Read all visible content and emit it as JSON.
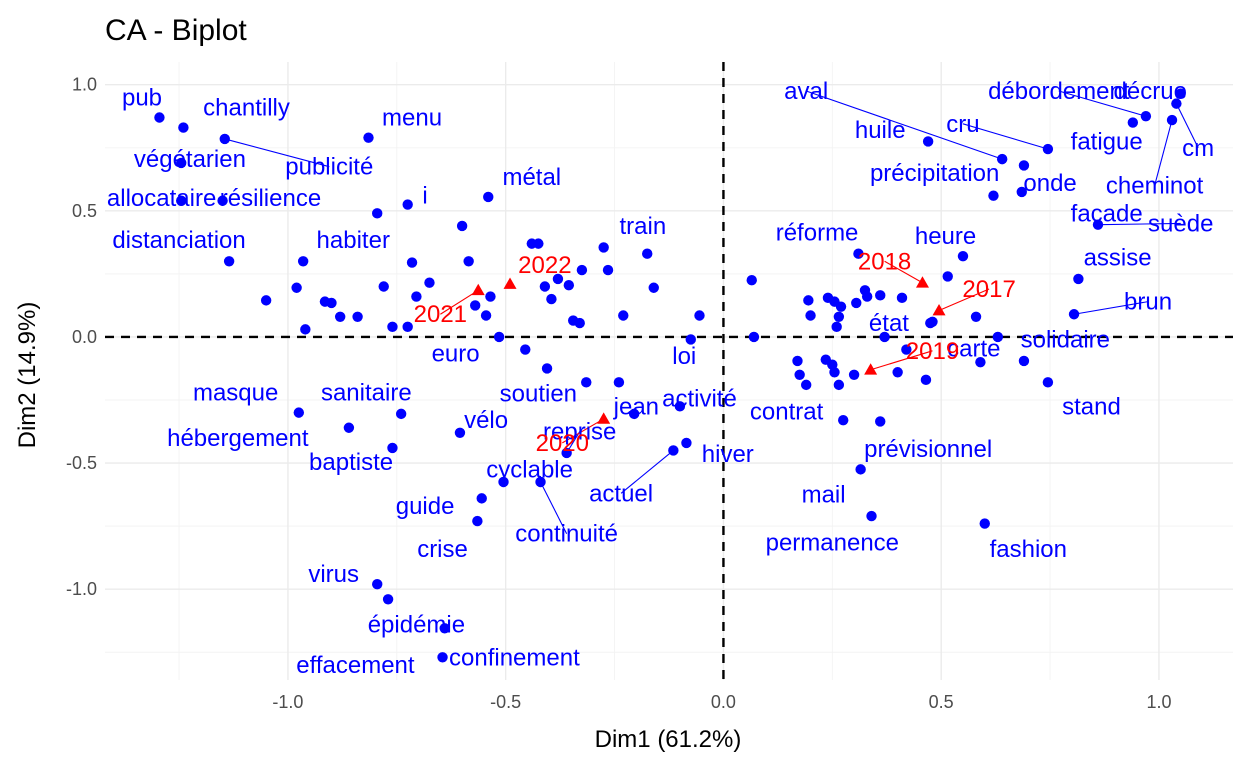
{
  "chart_data": {
    "type": "scatter",
    "title": "CA - Biplot",
    "xlabel": "Dim1 (61.2%)",
    "ylabel": "Dim2 (14.9%)",
    "xlim": [
      -1.42,
      1.17
    ],
    "ylim": [
      -1.36,
      1.09
    ],
    "x_ticks": [
      -1.0,
      -0.5,
      0.0,
      0.5,
      1.0
    ],
    "x_tick_labels": [
      "-1.0",
      "-0.5",
      "0.0",
      "0.5",
      "1.0"
    ],
    "y_ticks": [
      -1.0,
      -0.5,
      0.0,
      0.5,
      1.0
    ],
    "y_tick_labels": [
      "-1.0",
      "-0.5",
      "0.0",
      "0.5",
      "1.0"
    ],
    "grid": true,
    "reference_lines": {
      "x": 0,
      "y": 0,
      "style": "dashed"
    },
    "colors": {
      "rows": "#0000ff",
      "columns": "#ff0000"
    },
    "column_points": [
      {
        "label": "2017",
        "x": 0.495,
        "y": 0.105,
        "lx": 0.61,
        "ly": 0.19
      },
      {
        "label": "2018",
        "x": 0.457,
        "y": 0.215,
        "lx": 0.37,
        "ly": 0.3
      },
      {
        "label": "2019",
        "x": 0.338,
        "y": -0.13,
        "lx": 0.48,
        "ly": -0.055
      },
      {
        "label": "2020",
        "x": -0.275,
        "y": -0.325,
        "lx": -0.37,
        "ly": -0.42
      },
      {
        "label": "2021",
        "x": -0.563,
        "y": 0.185,
        "lx": -0.65,
        "ly": 0.09
      },
      {
        "label": "2022",
        "x": -0.49,
        "y": 0.21,
        "lx": -0.41,
        "ly": 0.285
      }
    ],
    "row_points": [
      {
        "label": "pub",
        "x": -1.295,
        "y": 0.87,
        "lx": -1.335,
        "ly": 0.95
      },
      {
        "label": "chantilly",
        "x": -1.24,
        "y": 0.83,
        "lx": -1.095,
        "ly": 0.91
      },
      {
        "label": "végétarien",
        "x": -1.245,
        "y": 0.69,
        "lx": -1.225,
        "ly": 0.705
      },
      {
        "label": "publicité",
        "x": -1.145,
        "y": 0.785,
        "lx": -0.905,
        "ly": 0.675,
        "leader": true
      },
      {
        "label": "menu",
        "x": -0.815,
        "y": 0.79,
        "lx": -0.715,
        "ly": 0.87
      },
      {
        "label": "allocataire",
        "x": -1.245,
        "y": 0.54,
        "lx": -1.29,
        "ly": 0.55
      },
      {
        "label": "résilience",
        "x": -1.15,
        "y": 0.54,
        "lx": -1.04,
        "ly": 0.55
      },
      {
        "label": "i",
        "x": -0.725,
        "y": 0.525,
        "lx": -0.685,
        "ly": 0.56
      },
      {
        "label": "métal",
        "x": -0.54,
        "y": 0.555,
        "lx": -0.44,
        "ly": 0.635
      },
      {
        "label": "habiter",
        "x": -0.795,
        "y": 0.49,
        "lx": -0.85,
        "ly": 0.385
      },
      {
        "label": "distanciation",
        "x": -1.135,
        "y": 0.3,
        "lx": -1.25,
        "ly": 0.385
      },
      {
        "label": "train",
        "x": -0.175,
        "y": 0.33,
        "lx": -0.185,
        "ly": 0.44
      },
      {
        "label": "réforme",
        "x": 0.31,
        "y": 0.33,
        "lx": 0.215,
        "ly": 0.415
      },
      {
        "label": "heure",
        "x": 0.55,
        "y": 0.32,
        "lx": 0.51,
        "ly": 0.4
      },
      {
        "label": "assise",
        "x": 0.815,
        "y": 0.23,
        "lx": 0.905,
        "ly": 0.315
      },
      {
        "label": "brun",
        "x": 0.805,
        "y": 0.09,
        "lx": 0.975,
        "ly": 0.14,
        "leader": true
      },
      {
        "label": "état",
        "x": 0.475,
        "y": 0.055,
        "lx": 0.38,
        "ly": 0.055
      },
      {
        "label": "carte",
        "x": 0.59,
        "y": -0.1,
        "lx": 0.575,
        "ly": -0.045
      },
      {
        "label": "solidaire",
        "x": 0.69,
        "y": -0.095,
        "lx": 0.785,
        "ly": -0.01
      },
      {
        "label": "stand",
        "x": 0.745,
        "y": -0.18,
        "lx": 0.845,
        "ly": -0.275
      },
      {
        "label": "euro",
        "x": -0.405,
        "y": -0.125,
        "lx": -0.615,
        "ly": -0.065
      },
      {
        "label": "loi",
        "x": -0.075,
        "y": -0.01,
        "lx": -0.09,
        "ly": -0.075
      },
      {
        "label": "soutien",
        "x": -0.315,
        "y": -0.18,
        "lx": -0.425,
        "ly": -0.225
      },
      {
        "label": "activité",
        "x": -0.1,
        "y": -0.275,
        "lx": -0.055,
        "ly": -0.245
      },
      {
        "label": "jean",
        "x": -0.205,
        "y": -0.305,
        "lx": -0.2,
        "ly": -0.275
      },
      {
        "label": "masque",
        "x": -0.975,
        "y": -0.3,
        "lx": -1.12,
        "ly": -0.22
      },
      {
        "label": "sanitaire",
        "x": -0.74,
        "y": -0.305,
        "lx": -0.82,
        "ly": -0.22
      },
      {
        "label": "vélo",
        "x": -0.605,
        "y": -0.38,
        "lx": -0.545,
        "ly": -0.33
      },
      {
        "label": "reprise",
        "x": -0.36,
        "y": -0.46,
        "lx": -0.33,
        "ly": -0.375,
        "leader": true
      },
      {
        "label": "hébergement",
        "x": -0.86,
        "y": -0.36,
        "lx": -1.115,
        "ly": -0.4
      },
      {
        "label": "baptiste",
        "x": -0.76,
        "y": -0.44,
        "lx": -0.855,
        "ly": -0.495
      },
      {
        "label": "cyclable",
        "x": -0.505,
        "y": -0.575,
        "lx": -0.445,
        "ly": -0.525
      },
      {
        "label": "actuel",
        "x": -0.115,
        "y": -0.45,
        "lx": -0.235,
        "ly": -0.62,
        "leader": true
      },
      {
        "label": "hiver",
        "x": -0.085,
        "y": -0.42,
        "lx": 0.01,
        "ly": -0.465
      },
      {
        "label": "contrat",
        "x": 0.275,
        "y": -0.33,
        "lx": 0.145,
        "ly": -0.295
      },
      {
        "label": "prévisionnel",
        "x": 0.36,
        "y": -0.335,
        "lx": 0.47,
        "ly": -0.445
      },
      {
        "label": "guide",
        "x": -0.555,
        "y": -0.64,
        "lx": -0.685,
        "ly": -0.67
      },
      {
        "label": "continuité",
        "x": -0.42,
        "y": -0.575,
        "lx": -0.36,
        "ly": -0.78,
        "leader": true
      },
      {
        "label": "crise",
        "x": -0.565,
        "y": -0.73,
        "lx": -0.645,
        "ly": -0.84
      },
      {
        "label": "mail",
        "x": 0.315,
        "y": -0.525,
        "lx": 0.23,
        "ly": -0.625
      },
      {
        "label": "permanence",
        "x": 0.34,
        "y": -0.71,
        "lx": 0.25,
        "ly": -0.815
      },
      {
        "label": "fashion",
        "x": 0.6,
        "y": -0.74,
        "lx": 0.7,
        "ly": -0.84
      },
      {
        "label": "virus",
        "x": -0.795,
        "y": -0.98,
        "lx": -0.895,
        "ly": -0.94
      },
      {
        "label": "épidémie",
        "x": -0.77,
        "y": -1.04,
        "lx": -0.705,
        "ly": -1.14
      },
      {
        "label": "confinement",
        "x": -0.64,
        "y": -1.155,
        "lx": -0.48,
        "ly": -1.27
      },
      {
        "label": "effacement",
        "x": -0.645,
        "y": -1.27,
        "lx": -0.845,
        "ly": -1.3
      },
      {
        "label": "aval",
        "x": 0.64,
        "y": 0.705,
        "lx": 0.19,
        "ly": 0.975,
        "leader": true
      },
      {
        "label": "débordement",
        "x": 0.97,
        "y": 0.875,
        "lx": 0.77,
        "ly": 0.975,
        "leader": true
      },
      {
        "label": "décrue",
        "x": 1.05,
        "y": 0.965,
        "lx": 0.98,
        "ly": 0.975
      },
      {
        "label": "huile",
        "x": 0.47,
        "y": 0.775,
        "lx": 0.36,
        "ly": 0.82
      },
      {
        "label": "cru",
        "x": 0.745,
        "y": 0.745,
        "lx": 0.55,
        "ly": 0.845,
        "leader": true
      },
      {
        "label": "fatigue",
        "x": 0.94,
        "y": 0.85,
        "lx": 0.88,
        "ly": 0.775
      },
      {
        "label": "cm",
        "x": 1.04,
        "y": 0.925,
        "lx": 1.09,
        "ly": 0.75,
        "leader": true
      },
      {
        "label": "précipitation",
        "x": 0.62,
        "y": 0.56,
        "lx": 0.485,
        "ly": 0.65
      },
      {
        "label": "onde",
        "x": 0.69,
        "y": 0.68,
        "lx": 0.75,
        "ly": 0.61
      },
      {
        "label": "cheminot",
        "x": 1.03,
        "y": 0.86,
        "lx": 0.99,
        "ly": 0.6,
        "leader": true
      },
      {
        "label": "façade",
        "x": 0.685,
        "y": 0.575,
        "lx": 0.88,
        "ly": 0.49
      },
      {
        "label": "suède",
        "x": 0.86,
        "y": 0.445,
        "lx": 1.05,
        "ly": 0.45,
        "leader": true
      }
    ],
    "unlabeled_row_points": [
      [
        -1.05,
        0.145
      ],
      [
        -0.98,
        0.195
      ],
      [
        -0.965,
        0.3
      ],
      [
        -0.96,
        0.03
      ],
      [
        -0.915,
        0.14
      ],
      [
        -0.9,
        0.135
      ],
      [
        -0.88,
        0.08
      ],
      [
        -0.84,
        0.08
      ],
      [
        -0.78,
        0.2
      ],
      [
        -0.76,
        0.04
      ],
      [
        -0.725,
        0.04
      ],
      [
        -0.715,
        0.295
      ],
      [
        -0.705,
        0.16
      ],
      [
        -0.675,
        0.215
      ],
      [
        -0.6,
        0.44
      ],
      [
        -0.585,
        0.3
      ],
      [
        -0.57,
        0.125
      ],
      [
        -0.545,
        0.085
      ],
      [
        -0.535,
        0.16
      ],
      [
        -0.515,
        0.0
      ],
      [
        -0.455,
        -0.05
      ],
      [
        -0.44,
        0.37
      ],
      [
        -0.425,
        0.37
      ],
      [
        -0.41,
        0.2
      ],
      [
        -0.395,
        0.15
      ],
      [
        -0.38,
        0.23
      ],
      [
        -0.355,
        0.205
      ],
      [
        -0.345,
        0.065
      ],
      [
        -0.33,
        0.055
      ],
      [
        -0.325,
        0.265
      ],
      [
        -0.275,
        0.355
      ],
      [
        -0.265,
        0.265
      ],
      [
        -0.24,
        -0.18
      ],
      [
        -0.23,
        0.085
      ],
      [
        -0.16,
        0.195
      ],
      [
        -0.055,
        0.085
      ],
      [
        0.065,
        0.225
      ],
      [
        0.07,
        0.0
      ],
      [
        0.17,
        -0.095
      ],
      [
        0.175,
        -0.15
      ],
      [
        0.19,
        -0.19
      ],
      [
        0.195,
        0.145
      ],
      [
        0.2,
        0.085
      ],
      [
        0.235,
        -0.09
      ],
      [
        0.24,
        0.155
      ],
      [
        0.25,
        -0.11
      ],
      [
        0.255,
        -0.14
      ],
      [
        0.255,
        0.14
      ],
      [
        0.26,
        0.04
      ],
      [
        0.265,
        0.08
      ],
      [
        0.265,
        -0.19
      ],
      [
        0.27,
        0.12
      ],
      [
        0.3,
        -0.15
      ],
      [
        0.305,
        0.135
      ],
      [
        0.325,
        0.185
      ],
      [
        0.33,
        0.16
      ],
      [
        0.36,
        0.165
      ],
      [
        0.37,
        0.0
      ],
      [
        0.4,
        -0.14
      ],
      [
        0.41,
        0.155
      ],
      [
        0.42,
        -0.05
      ],
      [
        0.465,
        -0.17
      ],
      [
        0.48,
        0.06
      ],
      [
        0.515,
        0.24
      ],
      [
        0.58,
        0.08
      ],
      [
        0.63,
        0.0
      ]
    ]
  }
}
